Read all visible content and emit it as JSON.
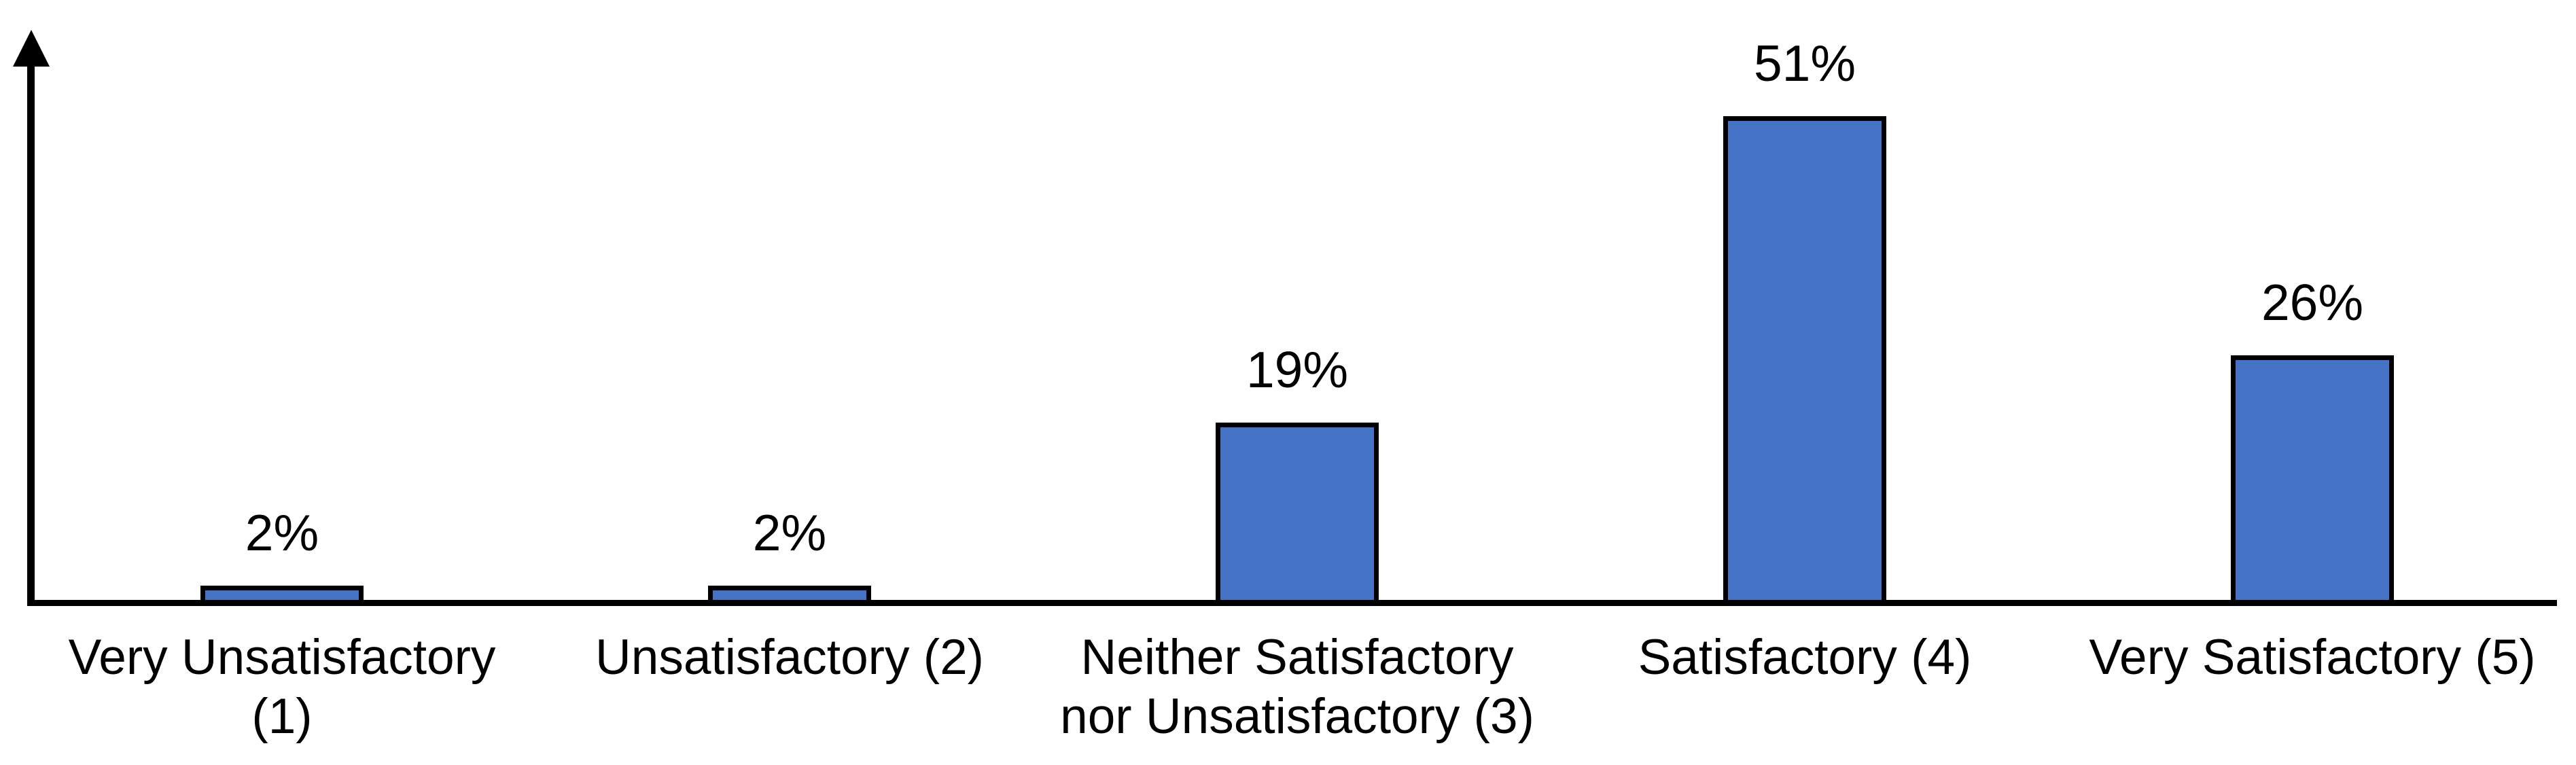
{
  "chart_data": {
    "type": "bar",
    "title": "",
    "xlabel": "",
    "ylabel": "",
    "categories": [
      "Very Unsatisfactory (1)",
      "Unsatisfactory (2)",
      "Neither Satisfactory nor Unsatisfactory (3)",
      "Satisfactory (4)",
      "Very Satisfactory (5)"
    ],
    "category_label_lines": [
      [
        "Very Unsatisfactory",
        "(1)"
      ],
      [
        "Unsatisfactory (2)"
      ],
      [
        "Neither Satisfactory",
        "nor Unsatisfactory (3)"
      ],
      [
        "Satisfactory (4)"
      ],
      [
        "Very Satisfactory (5)"
      ]
    ],
    "values": [
      2,
      2,
      19,
      51,
      26
    ],
    "data_labels": [
      "2%",
      "2%",
      "19%",
      "51%",
      "26%"
    ],
    "ylim": [
      0,
      55
    ],
    "grid": false,
    "legend_position": "none",
    "y_tick_labels_visible": false,
    "colors": {
      "bar_fill": "#4472C4",
      "bar_border": "#000000",
      "axis": "#000000",
      "text": "#000000",
      "background": "#FFFFFF"
    }
  }
}
